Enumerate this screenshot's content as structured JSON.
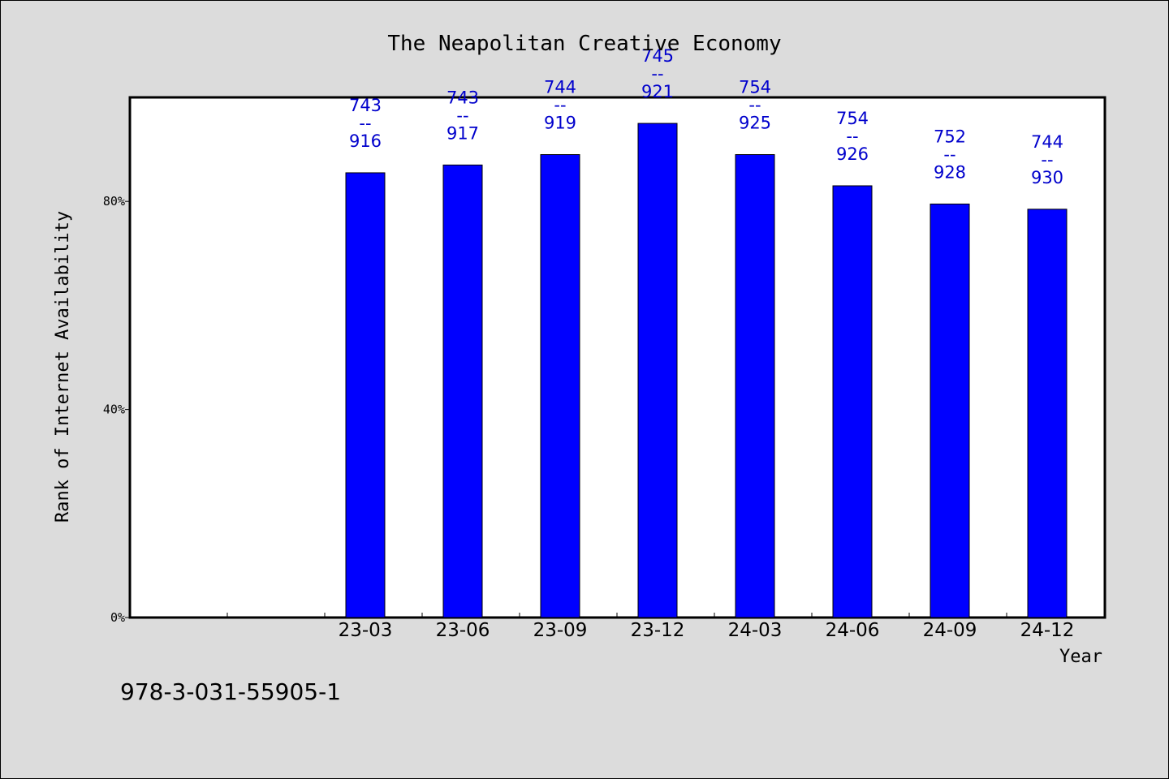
{
  "chart_data": {
    "type": "bar",
    "title": "The Neapolitan Creative Economy",
    "xlabel": "Year",
    "ylabel": "Rank of Internet Availability",
    "categories": [
      "23-03",
      "23-06",
      "23-09",
      "23-12",
      "24-03",
      "24-06",
      "24-09",
      "24-12"
    ],
    "values": [
      85.5,
      87.0,
      89.0,
      95.0,
      89.0,
      83.0,
      79.5,
      78.5
    ],
    "data_labels": [
      [
        "743",
        "--",
        "916"
      ],
      [
        "743",
        "--",
        "917"
      ],
      [
        "744",
        "--",
        "919"
      ],
      [
        "745",
        "--",
        "921"
      ],
      [
        "754",
        "--",
        "925"
      ],
      [
        "754",
        "--",
        "926"
      ],
      [
        "752",
        "--",
        "928"
      ],
      [
        "744",
        "--",
        "930"
      ]
    ],
    "yticks": [
      {
        "value": 0,
        "label": "0%"
      },
      {
        "value": 40,
        "label": "40%"
      },
      {
        "value": 80,
        "label": "80%"
      }
    ],
    "ylim": [
      0,
      100
    ],
    "grid": false,
    "bar_color": "#0000ff",
    "label_color": "#0000cc"
  },
  "footnote": "978-3-031-55905-1"
}
